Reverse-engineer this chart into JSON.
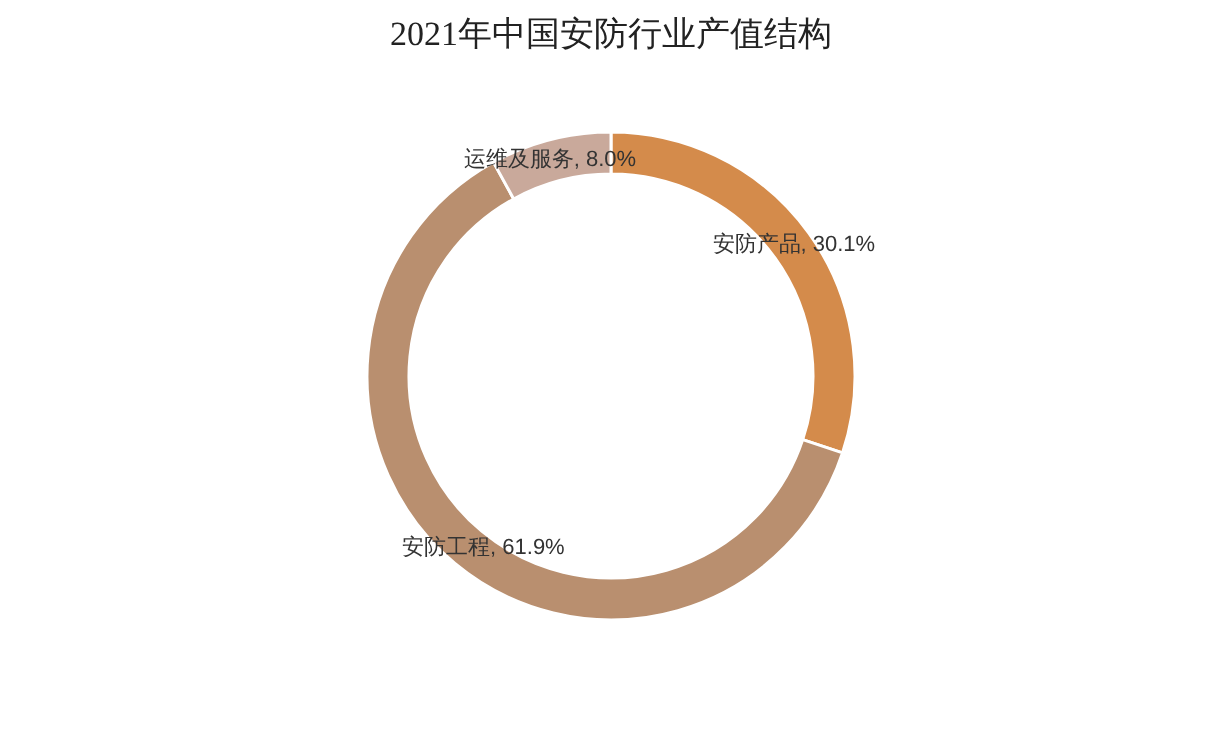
{
  "chart_data": {
    "type": "donut",
    "title": "2021年中国安防行业产值结构",
    "categories": [
      "安防产品",
      "安防工程",
      "运维及服务"
    ],
    "values": [
      30.1,
      61.9,
      8.0
    ],
    "colors": [
      "#d48b4b",
      "#b98f6f",
      "#c9a99b"
    ],
    "value_labels": [
      ", 30.1%",
      ", 61.9%",
      ", 8.0%"
    ]
  }
}
